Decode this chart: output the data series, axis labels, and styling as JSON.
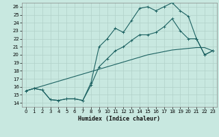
{
  "xlabel": "Humidex (Indice chaleur)",
  "ylabel": "",
  "bg_color": "#c8e8e0",
  "grid_color": "#b0d0c8",
  "line_color": "#1a6060",
  "xlim": [
    -0.5,
    23.5
  ],
  "ylim": [
    13.5,
    26.5
  ],
  "xticks": [
    0,
    1,
    2,
    3,
    4,
    5,
    6,
    7,
    8,
    9,
    10,
    11,
    12,
    13,
    14,
    15,
    16,
    17,
    18,
    19,
    20,
    21,
    22,
    23
  ],
  "yticks": [
    14,
    15,
    16,
    17,
    18,
    19,
    20,
    21,
    22,
    23,
    24,
    25,
    26
  ],
  "line1_x": [
    0,
    1,
    2,
    3,
    4,
    5,
    6,
    7,
    8,
    9,
    10,
    11,
    12,
    13,
    14,
    15,
    16,
    17,
    18,
    19,
    20,
    21,
    22,
    23
  ],
  "line1_y": [
    15.5,
    15.8,
    16.1,
    16.4,
    16.7,
    17.0,
    17.3,
    17.6,
    17.9,
    18.2,
    18.5,
    18.8,
    19.1,
    19.4,
    19.7,
    20.0,
    20.2,
    20.4,
    20.6,
    20.7,
    20.8,
    20.9,
    20.9,
    20.5
  ],
  "line2_x": [
    0,
    1,
    2,
    3,
    4,
    5,
    6,
    7,
    8,
    9,
    10,
    11,
    12,
    13,
    14,
    15,
    16,
    17,
    18,
    19,
    20,
    21,
    22,
    23
  ],
  "line2_y": [
    15.5,
    15.8,
    15.6,
    14.4,
    14.3,
    14.5,
    14.5,
    14.3,
    16.5,
    21.0,
    22.0,
    23.3,
    22.8,
    24.3,
    25.8,
    26.0,
    25.5,
    26.0,
    26.5,
    25.5,
    24.8,
    22.0,
    20.0,
    20.5
  ],
  "line3_x": [
    0,
    1,
    2,
    3,
    4,
    5,
    6,
    7,
    8,
    9,
    10,
    11,
    12,
    13,
    14,
    15,
    16,
    17,
    18,
    19,
    20,
    21,
    22,
    23
  ],
  "line3_y": [
    15.5,
    15.8,
    15.6,
    14.4,
    14.3,
    14.5,
    14.5,
    14.3,
    16.2,
    18.5,
    19.5,
    20.5,
    21.0,
    21.8,
    22.5,
    22.5,
    22.8,
    23.5,
    24.5,
    23.0,
    22.0,
    22.0,
    20.0,
    20.5
  ],
  "figsize": [
    3.2,
    2.0
  ],
  "dpi": 100
}
